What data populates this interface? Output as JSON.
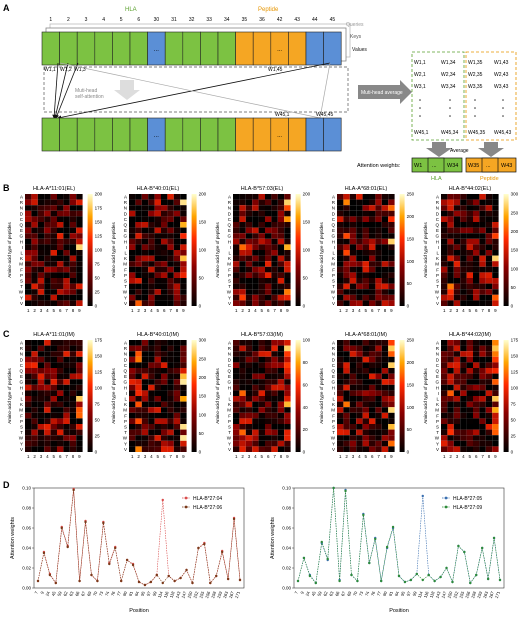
{
  "panels": {
    "A": "A",
    "B": "B",
    "C": "C",
    "D": "D"
  },
  "panel_a": {
    "hla_label": "HLA",
    "peptide_label": "Peptide",
    "position_labels": [
      "1",
      "2",
      "3",
      "4",
      "5",
      "6",
      "30",
      "31",
      "32",
      "33",
      "34",
      "35",
      "36",
      "42",
      "43",
      "44",
      "45"
    ],
    "ellipsis": "...",
    "layer_labels": [
      "Queries",
      "Keys",
      "Values"
    ],
    "weight_labels_top": [
      "W1,1",
      "W1,2",
      "W1,3",
      "W1,45"
    ],
    "weight_labels_bottom": [
      "W45,1",
      "W45,45"
    ],
    "self_attention_label": [
      "Muti-head",
      "self-attention"
    ],
    "mha_label": "Muti-head average",
    "matrix": {
      "row1": [
        "W1,1",
        "W1,34",
        "W1,35",
        "W1,43"
      ],
      "row2": [
        "W2,1",
        "W2,34",
        "W2,35",
        "W2,43"
      ],
      "row3": [
        "W3,1",
        "W3,34",
        "W3,35",
        "W3,43"
      ],
      "rowN": [
        "W45,1",
        "W45,34",
        "W45,35",
        "W45,43"
      ]
    },
    "average_label": "Average",
    "attention_weights_label": "Attention weights:",
    "hla_box": [
      "W1",
      "...",
      "W34"
    ],
    "peptide_box": [
      "W35",
      "...",
      "W43"
    ]
  },
  "heatmaps": {
    "row_labels": [
      "A",
      "R",
      "N",
      "D",
      "C",
      "Q",
      "E",
      "G",
      "H",
      "I",
      "L",
      "K",
      "M",
      "F",
      "P",
      "S",
      "T",
      "W",
      "Y",
      "V"
    ],
    "col_labels": [
      "1",
      "2",
      "3",
      "4",
      "5",
      "6",
      "7",
      "8",
      "9"
    ],
    "ylabel": "Amino-acid type of peptides",
    "colormap": {
      "low": "#000000",
      "mid1": "#8b0000",
      "mid2": "#ff2a00",
      "mid3": "#ffa500",
      "high": "#ffffd0"
    },
    "row_b": [
      {
        "title": "HLA-A*11:01(EL)",
        "ticks": [
          "200",
          "175",
          "150",
          "125",
          "100",
          "75",
          "50",
          "25",
          "0"
        ],
        "max": 200
      },
      {
        "title": "HLA-B*40:01(EL)",
        "ticks": [
          "200",
          "150",
          "100",
          "50",
          "0"
        ],
        "max": 200
      },
      {
        "title": "HLA-B*57:03(EL)",
        "ticks": [
          "200",
          "150",
          "100",
          "50",
          "0"
        ],
        "max": 200
      },
      {
        "title": "HLA-A*68:01(EL)",
        "ticks": [
          "250",
          "200",
          "150",
          "100",
          "50",
          "0"
        ],
        "max": 250
      },
      {
        "title": "HLA-B*44:02(EL)",
        "ticks": [
          "300",
          "250",
          "200",
          "150",
          "100",
          "50",
          "0"
        ],
        "max": 300
      }
    ],
    "row_c": [
      {
        "title": "HLA-A*11:01(IM)",
        "ticks": [
          "175",
          "150",
          "125",
          "100",
          "75",
          "50",
          "25",
          "0"
        ],
        "max": 175
      },
      {
        "title": "HLA-B*40:01(IM)",
        "ticks": [
          "300",
          "250",
          "200",
          "150",
          "100",
          "50",
          "0"
        ],
        "max": 300
      },
      {
        "title": "HLA-B*57:03(IM)",
        "ticks": [
          "100",
          "80",
          "60",
          "40",
          "20",
          "0"
        ],
        "max": 100
      },
      {
        "title": "HLA-A*68:01(IM)",
        "ticks": [
          "250",
          "200",
          "150",
          "100",
          "50",
          "0"
        ],
        "max": 250
      },
      {
        "title": "HLA-B*44:02(IM)",
        "ticks": [
          "175",
          "150",
          "125",
          "100",
          "75",
          "50",
          "25",
          "0"
        ],
        "max": 175
      }
    ]
  },
  "chart_data": [
    {
      "type": "line",
      "title": "",
      "xlabel": "Position",
      "ylabel": "Attention weights",
      "ylim": [
        0,
        0.1
      ],
      "yticks": [
        "0.00",
        "0.02",
        "0.04",
        "0.06",
        "0.08",
        "0.10"
      ],
      "x": [
        "7",
        "9",
        "24",
        "45",
        "59",
        "62",
        "63",
        "66",
        "67",
        "69",
        "70",
        "73",
        "74",
        "76",
        "77",
        "80",
        "81",
        "84",
        "95",
        "97",
        "99",
        "114",
        "116",
        "118",
        "143",
        "147",
        "150",
        "152",
        "155",
        "156",
        "158",
        "159",
        "163",
        "167",
        "171"
      ],
      "series": [
        {
          "name": "HLA-B*27:04",
          "color": "#d94c4c",
          "values": [
            0.007,
            0.036,
            0.014,
            0.005,
            0.061,
            0.042,
            0.099,
            0.007,
            0.067,
            0.013,
            0.007,
            0.066,
            0.025,
            0.041,
            0.007,
            0.028,
            0.024,
            0.006,
            0.003,
            0.006,
            0.013,
            0.088,
            0.012,
            0.007,
            0.01,
            0.018,
            0.005,
            0.04,
            0.045,
            0.005,
            0.012,
            0.037,
            0.009,
            0.07,
            0.008
          ]
        },
        {
          "name": "HLA-B*27:06",
          "color": "#7a3a1a",
          "values": [
            0.007,
            0.035,
            0.013,
            0.005,
            0.06,
            0.041,
            0.098,
            0.007,
            0.066,
            0.013,
            0.007,
            0.065,
            0.024,
            0.04,
            0.007,
            0.028,
            0.023,
            0.006,
            0.003,
            0.006,
            0.013,
            0.005,
            0.012,
            0.007,
            0.01,
            0.018,
            0.005,
            0.04,
            0.044,
            0.005,
            0.012,
            0.036,
            0.009,
            0.069,
            0.008
          ]
        }
      ],
      "legend": "top-right"
    },
    {
      "type": "line",
      "title": "",
      "xlabel": "Position",
      "ylabel": "Attention weights",
      "ylim": [
        0,
        0.1
      ],
      "yticks": [
        "0.00",
        "0.02",
        "0.04",
        "0.06",
        "0.08",
        "0.10"
      ],
      "x": [
        "7",
        "9",
        "24",
        "45",
        "59",
        "62",
        "63",
        "66",
        "67",
        "69",
        "70",
        "73",
        "74",
        "76",
        "77",
        "80",
        "81",
        "84",
        "95",
        "97",
        "99",
        "114",
        "116",
        "118",
        "143",
        "147",
        "150",
        "152",
        "155",
        "156",
        "158",
        "159",
        "163",
        "167",
        "171"
      ],
      "series": [
        {
          "name": "HLA-B*27:05",
          "color": "#3a6fb0",
          "values": [
            0.007,
            0.03,
            0.013,
            0.005,
            0.045,
            0.028,
            0.1,
            0.008,
            0.098,
            0.013,
            0.007,
            0.074,
            0.025,
            0.05,
            0.007,
            0.04,
            0.06,
            0.012,
            0.006,
            0.008,
            0.014,
            0.092,
            0.013,
            0.007,
            0.011,
            0.02,
            0.006,
            0.042,
            0.036,
            0.005,
            0.013,
            0.04,
            0.009,
            0.05,
            0.008
          ]
        },
        {
          "name": "HLA-B*27:09",
          "color": "#2e8b3a",
          "values": [
            0.007,
            0.03,
            0.012,
            0.005,
            0.046,
            0.029,
            0.1,
            0.007,
            0.097,
            0.013,
            0.007,
            0.073,
            0.025,
            0.049,
            0.007,
            0.041,
            0.061,
            0.012,
            0.006,
            0.008,
            0.014,
            0.008,
            0.013,
            0.007,
            0.011,
            0.02,
            0.006,
            0.042,
            0.036,
            0.005,
            0.013,
            0.04,
            0.009,
            0.05,
            0.008
          ]
        }
      ],
      "legend": "top-right"
    }
  ]
}
